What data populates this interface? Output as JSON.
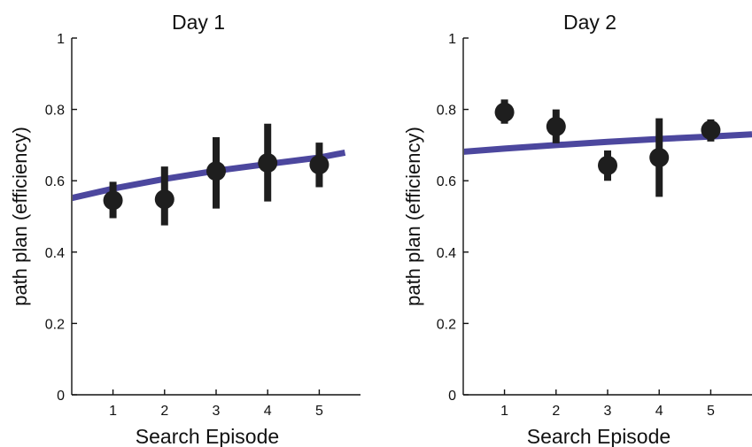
{
  "chart_data": [
    {
      "type": "scatter",
      "title": "Day 1",
      "xlabel": "Search Episode",
      "ylabel": "path plan (efficiency)",
      "xlim": [
        0.2,
        5.8
      ],
      "ylim": [
        0,
        1
      ],
      "xticks": [
        1,
        2,
        3,
        4,
        5
      ],
      "yticks": [
        0,
        0.2,
        0.4,
        0.6,
        0.8,
        1
      ],
      "ytick_labels": [
        "0",
        "0.2",
        "0.4",
        "0.6",
        "0.8",
        "1"
      ],
      "grid": false,
      "series": [
        {
          "type": "errorbar",
          "x": [
            1,
            2,
            3,
            4,
            5
          ],
          "y": [
            0.545,
            0.548,
            0.627,
            0.65,
            0.645
          ],
          "yerr_low": [
            0.495,
            0.475,
            0.522,
            0.542,
            0.582
          ],
          "yerr_high": [
            0.597,
            0.64,
            0.722,
            0.76,
            0.707
          ],
          "color": "#1e1e1e"
        },
        {
          "type": "fit-line",
          "x": [
            0.0,
            1.0,
            2.0,
            3.0,
            4.0,
            5.0,
            5.5
          ],
          "y": [
            0.545,
            0.578,
            0.605,
            0.628,
            0.647,
            0.665,
            0.679
          ],
          "color": "#4c479e"
        }
      ]
    },
    {
      "type": "scatter",
      "title": "Day 2",
      "xlabel": "Search Episode",
      "ylabel": "path plan (efficiency)",
      "xlim": [
        0.2,
        5.8
      ],
      "ylim": [
        0,
        1
      ],
      "xticks": [
        1,
        2,
        3,
        4,
        5
      ],
      "yticks": [
        0,
        0.2,
        0.4,
        0.6,
        0.8,
        1
      ],
      "ytick_labels": [
        "0",
        "0.2",
        "0.4",
        "0.6",
        "0.8",
        "1"
      ],
      "grid": false,
      "series": [
        {
          "type": "errorbar",
          "x": [
            1,
            2,
            3,
            4,
            5
          ],
          "y": [
            0.792,
            0.752,
            0.643,
            0.665,
            0.742
          ],
          "yerr_low": [
            0.76,
            0.705,
            0.6,
            0.555,
            0.71
          ],
          "yerr_high": [
            0.828,
            0.8,
            0.685,
            0.775,
            0.772
          ],
          "color": "#1e1e1e"
        },
        {
          "type": "fit-line",
          "x": [
            0.0,
            1.0,
            2.0,
            3.0,
            4.0,
            5.0,
            5.8
          ],
          "y": [
            0.679,
            0.69,
            0.7,
            0.709,
            0.717,
            0.724,
            0.73
          ],
          "color": "#4c479e"
        }
      ]
    }
  ]
}
